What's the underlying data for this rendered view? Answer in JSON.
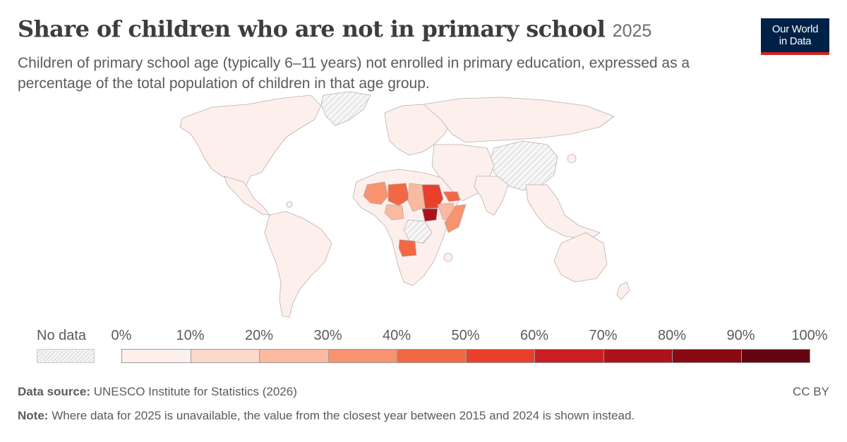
{
  "header": {
    "title": "Share of children who are not in primary school",
    "year": "2025",
    "subtitle": "Children of primary school age (typically 6–11 years) not enrolled in primary education, expressed as a percentage of the total population of children in that age group."
  },
  "logo": {
    "line1": "Our World",
    "line2": "in Data"
  },
  "legend": {
    "no_data_label": "No data",
    "ticks": [
      "0%",
      "10%",
      "20%",
      "30%",
      "40%",
      "50%",
      "60%",
      "70%",
      "80%",
      "90%",
      "100%"
    ],
    "colors": [
      "#fdf0ec",
      "#fcd9cd",
      "#fbb9a0",
      "#f8936f",
      "#f26845",
      "#e8402b",
      "#cc1e22",
      "#ab1219",
      "#8a0a13",
      "#640410"
    ]
  },
  "map_colors": {
    "no_data": "#e6e6e6",
    "border": "#b9b0ac",
    "south_sudan": "#ab1219",
    "sudan": "#e8402b",
    "niger": "#f26845",
    "mali": "#f8936f",
    "angola": "#f26845",
    "eritrea": "#f26845",
    "somalia": "#f8936f",
    "chad": "#fbb9a0",
    "nigeria": "#fbb9a0",
    "ethiopia": "#fbb9a0",
    "default_low": "#fdf0ec"
  },
  "footer": {
    "source_label": "Data source:",
    "source_text": "UNESCO Institute for Statistics (2026)",
    "note_label": "Note:",
    "note_text": "Where data for 2025 is unavailable, the value from the closest year between 2015 and 2024 is shown instead.",
    "license": "CC BY"
  }
}
